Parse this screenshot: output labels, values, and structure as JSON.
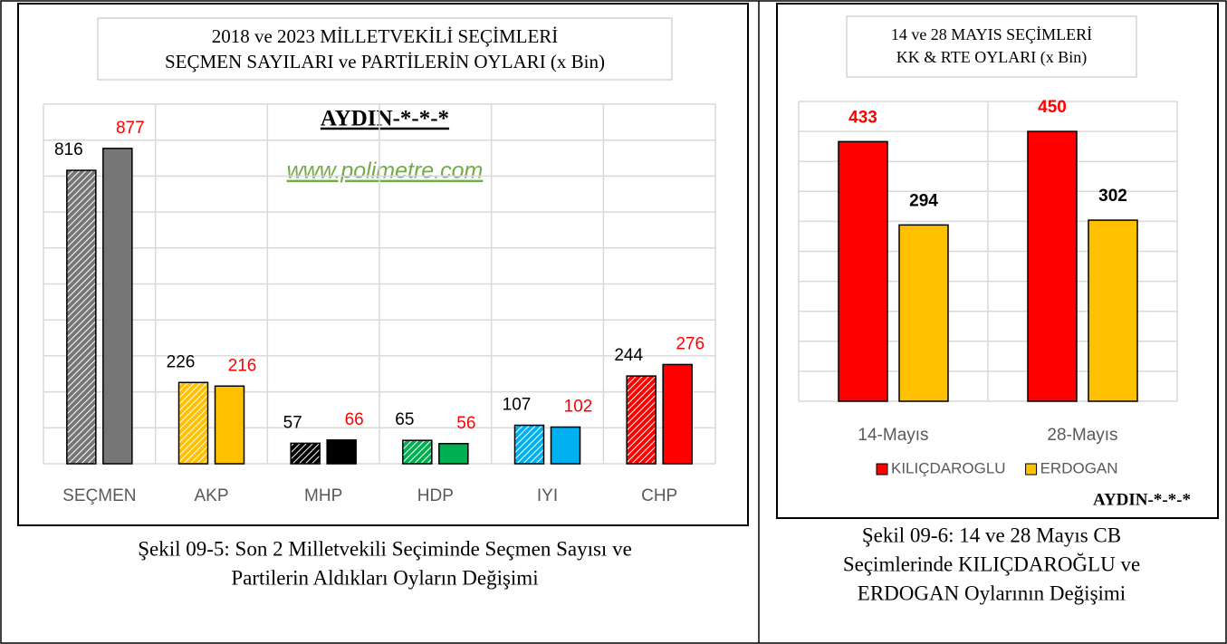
{
  "chart_data": [
    {
      "type": "bar",
      "title": "2018 ve 2023 MİLLETVEKİLİ  SEÇİMLERİ",
      "subtitle": "SEÇMEN SAYILARI  ve PARTİLERİN  OYLARI  (x Bin)",
      "annotations": [
        "AYDIN-*-*-*",
        "www.polimetre.com"
      ],
      "categories": [
        "SEÇMEN",
        "AKP",
        "MHP",
        "HDP",
        "IYI",
        "CHP"
      ],
      "colors": [
        "#767676",
        "#ffc000",
        "#000000",
        "#00b050",
        "#00b0f0",
        "#ff0000"
      ],
      "series": [
        {
          "values": [
            816,
            226,
            57,
            65,
            107,
            244
          ],
          "pattern": "hatched",
          "label_color": "#000000"
        },
        {
          "values": [
            877,
            216,
            66,
            56,
            102,
            276
          ],
          "pattern": "solid",
          "label_color": "#ff0000"
        }
      ],
      "ylim": [
        0,
        1000
      ],
      "yticks": [
        0,
        100,
        200,
        300,
        400,
        500,
        600,
        700,
        800,
        900,
        1000
      ],
      "grid": true,
      "caption": [
        "Şekil 09-5: Son 2 Milletvekili Seçiminde Seçmen Sayısı ve",
        "Partilerin Aldıkları Oyların Değişimi"
      ]
    },
    {
      "type": "bar",
      "title": "14 ve 28 MAYIS SEÇİMLERİ",
      "subtitle": "KK & RTE OYLARI (x Bin)",
      "annotations": [
        "AYDIN-*-*-*"
      ],
      "categories": [
        "14-Mayıs",
        "28-Mayıs"
      ],
      "series": [
        {
          "name": "KILIÇDAROGLU",
          "color": "#ff0000",
          "values": [
            433,
            450
          ],
          "label_color": "#ff0000"
        },
        {
          "name": "ERDOGAN",
          "color": "#ffc000",
          "values": [
            294,
            302
          ],
          "label_color": "#000000"
        }
      ],
      "ylim": [
        0,
        500
      ],
      "yticks": [
        0,
        50,
        100,
        150,
        200,
        250,
        300,
        350,
        400,
        450,
        500
      ],
      "grid": true,
      "caption": [
        "Şekil 09-6: 14 ve 28 Mayıs CB",
        "Seçimlerinde KILIÇDAROĞLU ve",
        "ERDOGAN Oylarının Değişimi"
      ]
    }
  ]
}
